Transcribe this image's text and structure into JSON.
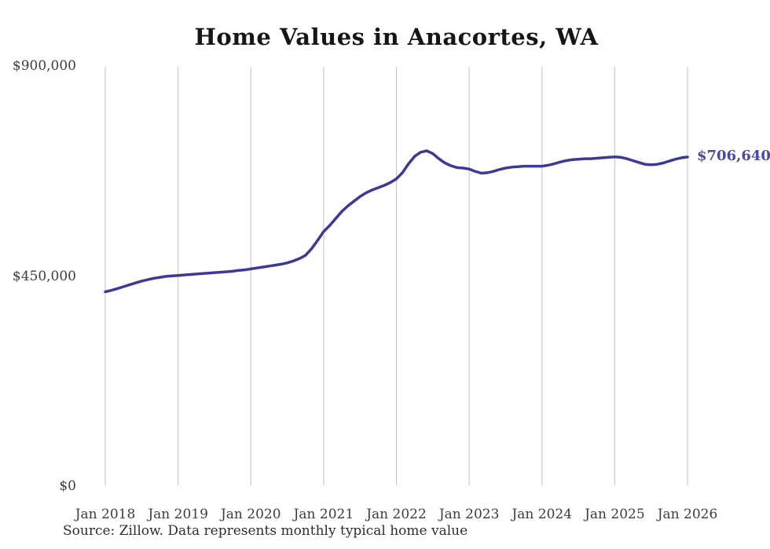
{
  "chart_data": {
    "type": "line",
    "title": "Home Values in Anacortes, WA",
    "source_note": "Source: Zillow. Data represents monthly typical home value",
    "series_name": "Monthly typical home value",
    "x_tick_labels": [
      "Jan 2018",
      "Jan 2019",
      "Jan 2020",
      "Jan 2021",
      "Jan 2022",
      "Jan 2023",
      "Jan 2024",
      "Jan 2025",
      "Jan 2026"
    ],
    "y_ticks": [
      {
        "label": "$0",
        "value": 0
      },
      {
        "label": "$450,000",
        "value": 450000
      },
      {
        "label": "$900,000",
        "value": 900000
      }
    ],
    "ylim": [
      0,
      900000
    ],
    "x_start": "Jan 2018",
    "x_end": "Jan 2026",
    "points_per_year": 12,
    "end_label": "$706,640",
    "end_value": 706640,
    "grid": "vertical-only",
    "legend": "none",
    "colors": {
      "line": "#3d3a96",
      "end_label": "#4c49a5",
      "gridline": "#c3c3c3",
      "tick_text": "#3d3d3d",
      "title_text": "#161616",
      "source_text": "#2e2e2e",
      "background": "#ffffff"
    },
    "values": [
      418000,
      421000,
      425000,
      429000,
      433000,
      437000,
      441000,
      444000,
      447000,
      449000,
      451000,
      452000,
      453000,
      454000,
      455000,
      456000,
      457000,
      458000,
      459000,
      460000,
      461000,
      462000,
      464000,
      465000,
      467000,
      469000,
      471000,
      473000,
      475000,
      477000,
      480000,
      484000,
      489000,
      496000,
      510000,
      528000,
      547000,
      560000,
      575000,
      590000,
      602000,
      612000,
      622000,
      630000,
      636000,
      641000,
      646000,
      652000,
      660000,
      673000,
      692000,
      708000,
      717000,
      720000,
      714000,
      703000,
      694000,
      688000,
      684000,
      683000,
      681000,
      676000,
      672000,
      673000,
      676000,
      680000,
      683000,
      685000,
      686000,
      687000,
      687000,
      687000,
      687000,
      689000,
      692000,
      696000,
      699000,
      701000,
      702000,
      703000,
      703000,
      704000,
      705000,
      706000,
      707000,
      706000,
      703000,
      699000,
      695000,
      691000,
      690000,
      691000,
      694000,
      698000,
      702000,
      705000,
      706640
    ]
  }
}
